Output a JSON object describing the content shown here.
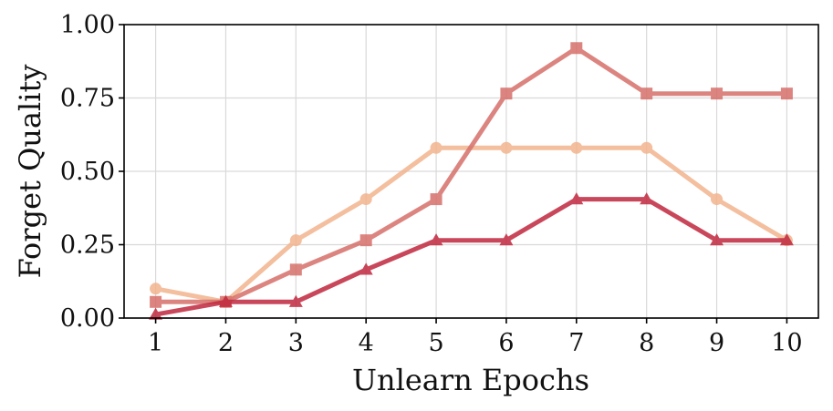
{
  "chart_data": {
    "type": "line",
    "title": "",
    "xlabel": "Unlearn Epochs",
    "ylabel": "Forget Quality",
    "x": [
      1,
      2,
      3,
      4,
      5,
      6,
      7,
      8,
      9,
      10
    ],
    "xticks": [
      "1",
      "2",
      "3",
      "4",
      "5",
      "6",
      "7",
      "8",
      "9",
      "10"
    ],
    "yticks": [
      "0.00",
      "0.25",
      "0.50",
      "0.75",
      "1.00"
    ],
    "ytick_values": [
      0,
      0.25,
      0.5,
      0.75,
      1.0
    ],
    "xlim": [
      0.55,
      10.45
    ],
    "ylim": [
      0,
      1.0
    ],
    "grid": true,
    "legend": "none",
    "series": [
      {
        "marker": "circle",
        "color": "#f2b48e",
        "values": [
          0.1,
          0.055,
          0.265,
          0.405,
          0.58,
          0.58,
          0.58,
          0.58,
          0.405,
          0.265
        ]
      },
      {
        "marker": "square",
        "color": "#d6706a",
        "values": [
          0.055,
          0.055,
          0.165,
          0.265,
          0.405,
          0.765,
          0.92,
          0.765,
          0.765,
          0.765
        ]
      },
      {
        "marker": "triangle",
        "color": "#c0283e",
        "values": [
          0.012,
          0.055,
          0.055,
          0.165,
          0.265,
          0.265,
          0.405,
          0.405,
          0.265,
          0.265
        ]
      }
    ]
  }
}
